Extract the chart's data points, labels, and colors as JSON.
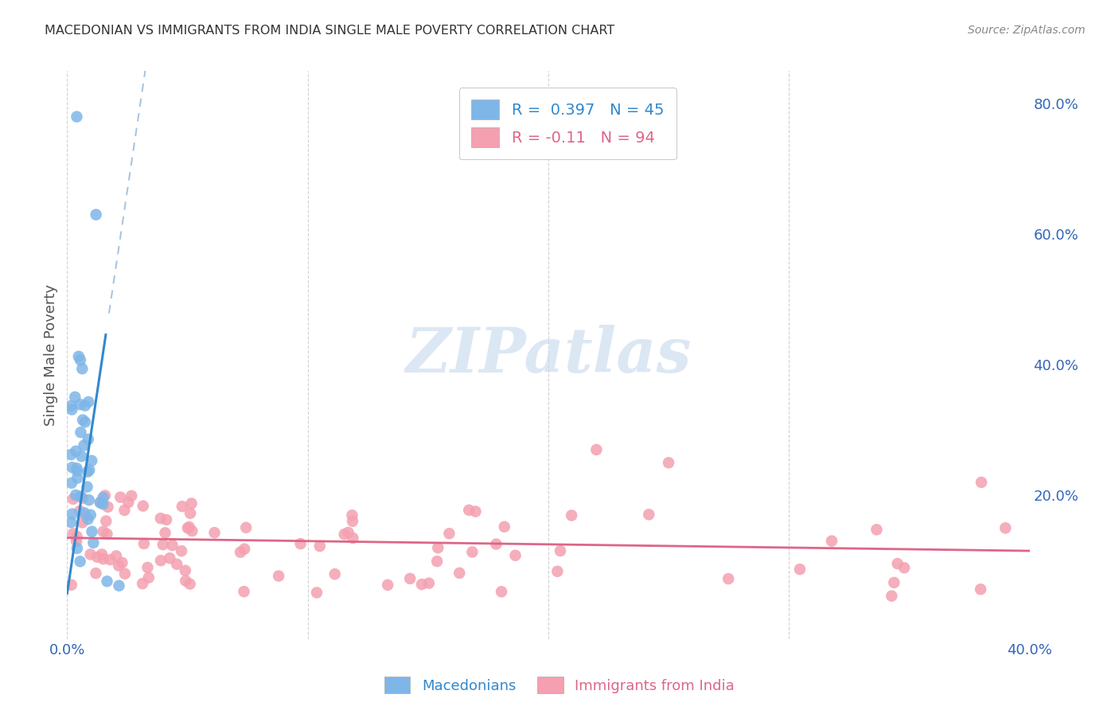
{
  "title": "MACEDONIAN VS IMMIGRANTS FROM INDIA SINGLE MALE POVERTY CORRELATION CHART",
  "source": "Source: ZipAtlas.com",
  "ylabel": "Single Male Poverty",
  "xlim": [
    0.0,
    0.4
  ],
  "ylim": [
    -0.02,
    0.85
  ],
  "macedonian_color": "#7EB6E8",
  "india_color": "#F4A0B0",
  "macedonian_line_color": "#3388CC",
  "macedonian_dash_color": "#99BBDD",
  "india_line_color": "#DD6688",
  "macedonian_R": 0.397,
  "macedonian_N": 45,
  "india_R": -0.11,
  "india_N": 94,
  "watermark": "ZIPatlas",
  "background_color": "#ffffff",
  "grid_color": "#cccccc",
  "title_color": "#333333",
  "source_color": "#888888",
  "axis_label_color": "#3366BB",
  "ylabel_color": "#555555"
}
